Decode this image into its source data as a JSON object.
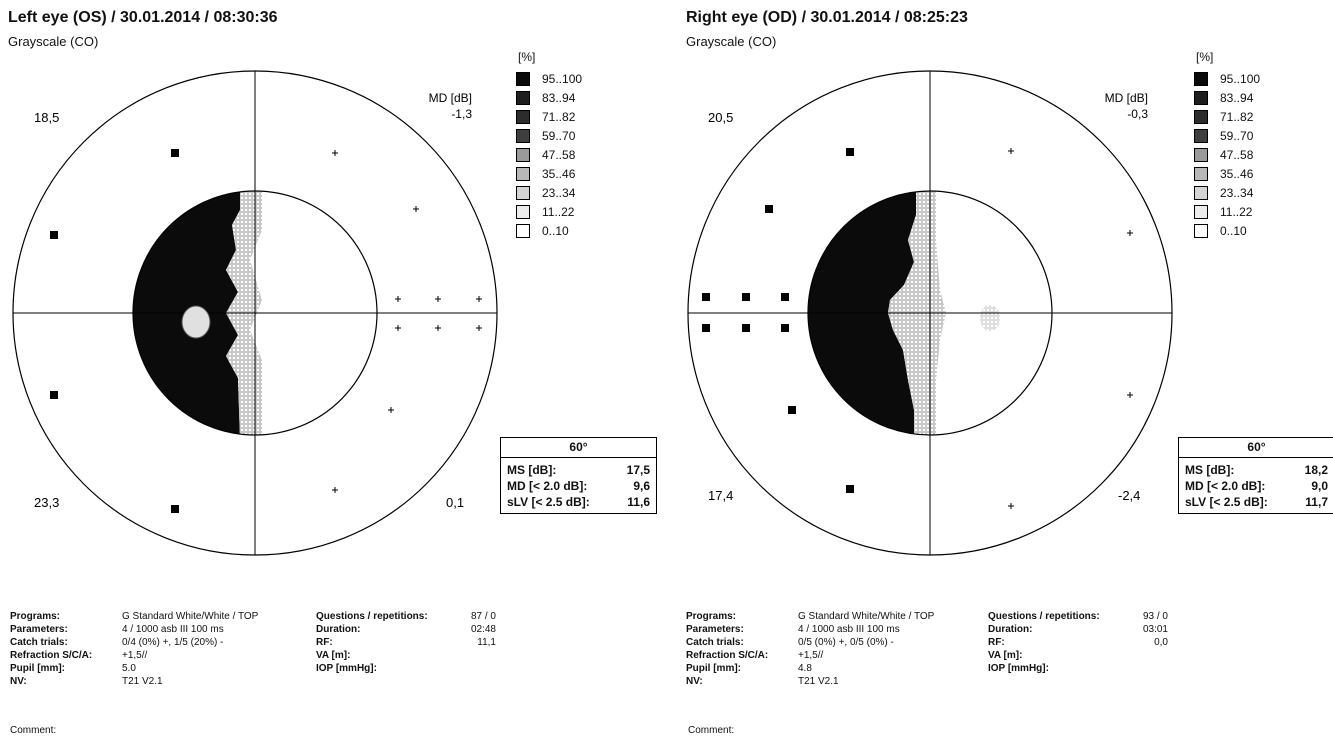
{
  "legend": {
    "unit": "[%]",
    "items": [
      {
        "label": "95..100",
        "color": "#0a0a0a"
      },
      {
        "label": "83..94",
        "color": "#1e1e1e"
      },
      {
        "label": "71..82",
        "color": "#2c2c2c"
      },
      {
        "label": "59..70",
        "color": "#3e3e3e"
      },
      {
        "label": "47..58",
        "color": "#9a9a9a"
      },
      {
        "label": "35..46",
        "color": "#b8b8b8"
      },
      {
        "label": "23..34",
        "color": "#d4d4d4"
      },
      {
        "label": "11..22",
        "color": "#ececec"
      },
      {
        "label": "0..10",
        "color": "#ffffff"
      }
    ]
  },
  "labels": {
    "programs": "Programs:",
    "parameters": "Parameters:",
    "catch_trials": "Catch trials:",
    "refraction": "Refraction S/C/A:",
    "pupil": "Pupil [mm]:",
    "nv": "NV:",
    "questions": "Questions / repetitions:",
    "duration": "Duration:",
    "rf": "RF:",
    "va": "VA [m]:",
    "iop": "IOP [mmHg]:",
    "comment": "Comment:",
    "ms": "MS [dB]:",
    "md_crit": "MD [< 2.0 dB]:",
    "slv_crit": "sLV [< 2.5 dB]:",
    "md_field": "MD [dB]"
  },
  "left": {
    "title": "Left eye (OS) / 30.01.2014 / 08:30:36",
    "subtitle": "Grayscale (CO)",
    "quadrants": {
      "tl": "18,5",
      "tr": "-1,3",
      "bl": "23,3",
      "br": "0,1"
    },
    "stats": {
      "header": "60°",
      "ms": "17,5",
      "md": "9,6",
      "slv": "11,6"
    },
    "info": {
      "programs": "G Standard   White/White / TOP",
      "parameters": "4  / 1000 asb III 100 ms",
      "catch_trials": "0/4 (0%) +, 1/5 (20%) -",
      "refraction": "+1,5//",
      "pupil": "5.0",
      "nv": "T21 V2.1",
      "questions": "87 / 0",
      "duration": "02:48",
      "rf": "11,1",
      "va": "",
      "iop": ""
    }
  },
  "right": {
    "title": "Right eye (OD) / 30.01.2014 / 08:25:23",
    "subtitle": "Grayscale (CO)",
    "quadrants": {
      "tl": "20,5",
      "tr": "-0,3",
      "bl": "17,4",
      "br": "-2,4"
    },
    "stats": {
      "header": "60°",
      "ms": "18,2",
      "md": "9,0",
      "slv": "11,7"
    },
    "info": {
      "programs": "G Standard   White/White / TOP",
      "parameters": "4  / 1000 asb III 100 ms",
      "catch_trials": "0/5 (0%) +, 0/5 (0%) -",
      "refraction": "+1,5//",
      "pupil": "4.8",
      "nv": "T21 V2.1",
      "questions": "93 / 0",
      "duration": "03:01",
      "rf": "0,0",
      "va": "",
      "iop": ""
    }
  }
}
